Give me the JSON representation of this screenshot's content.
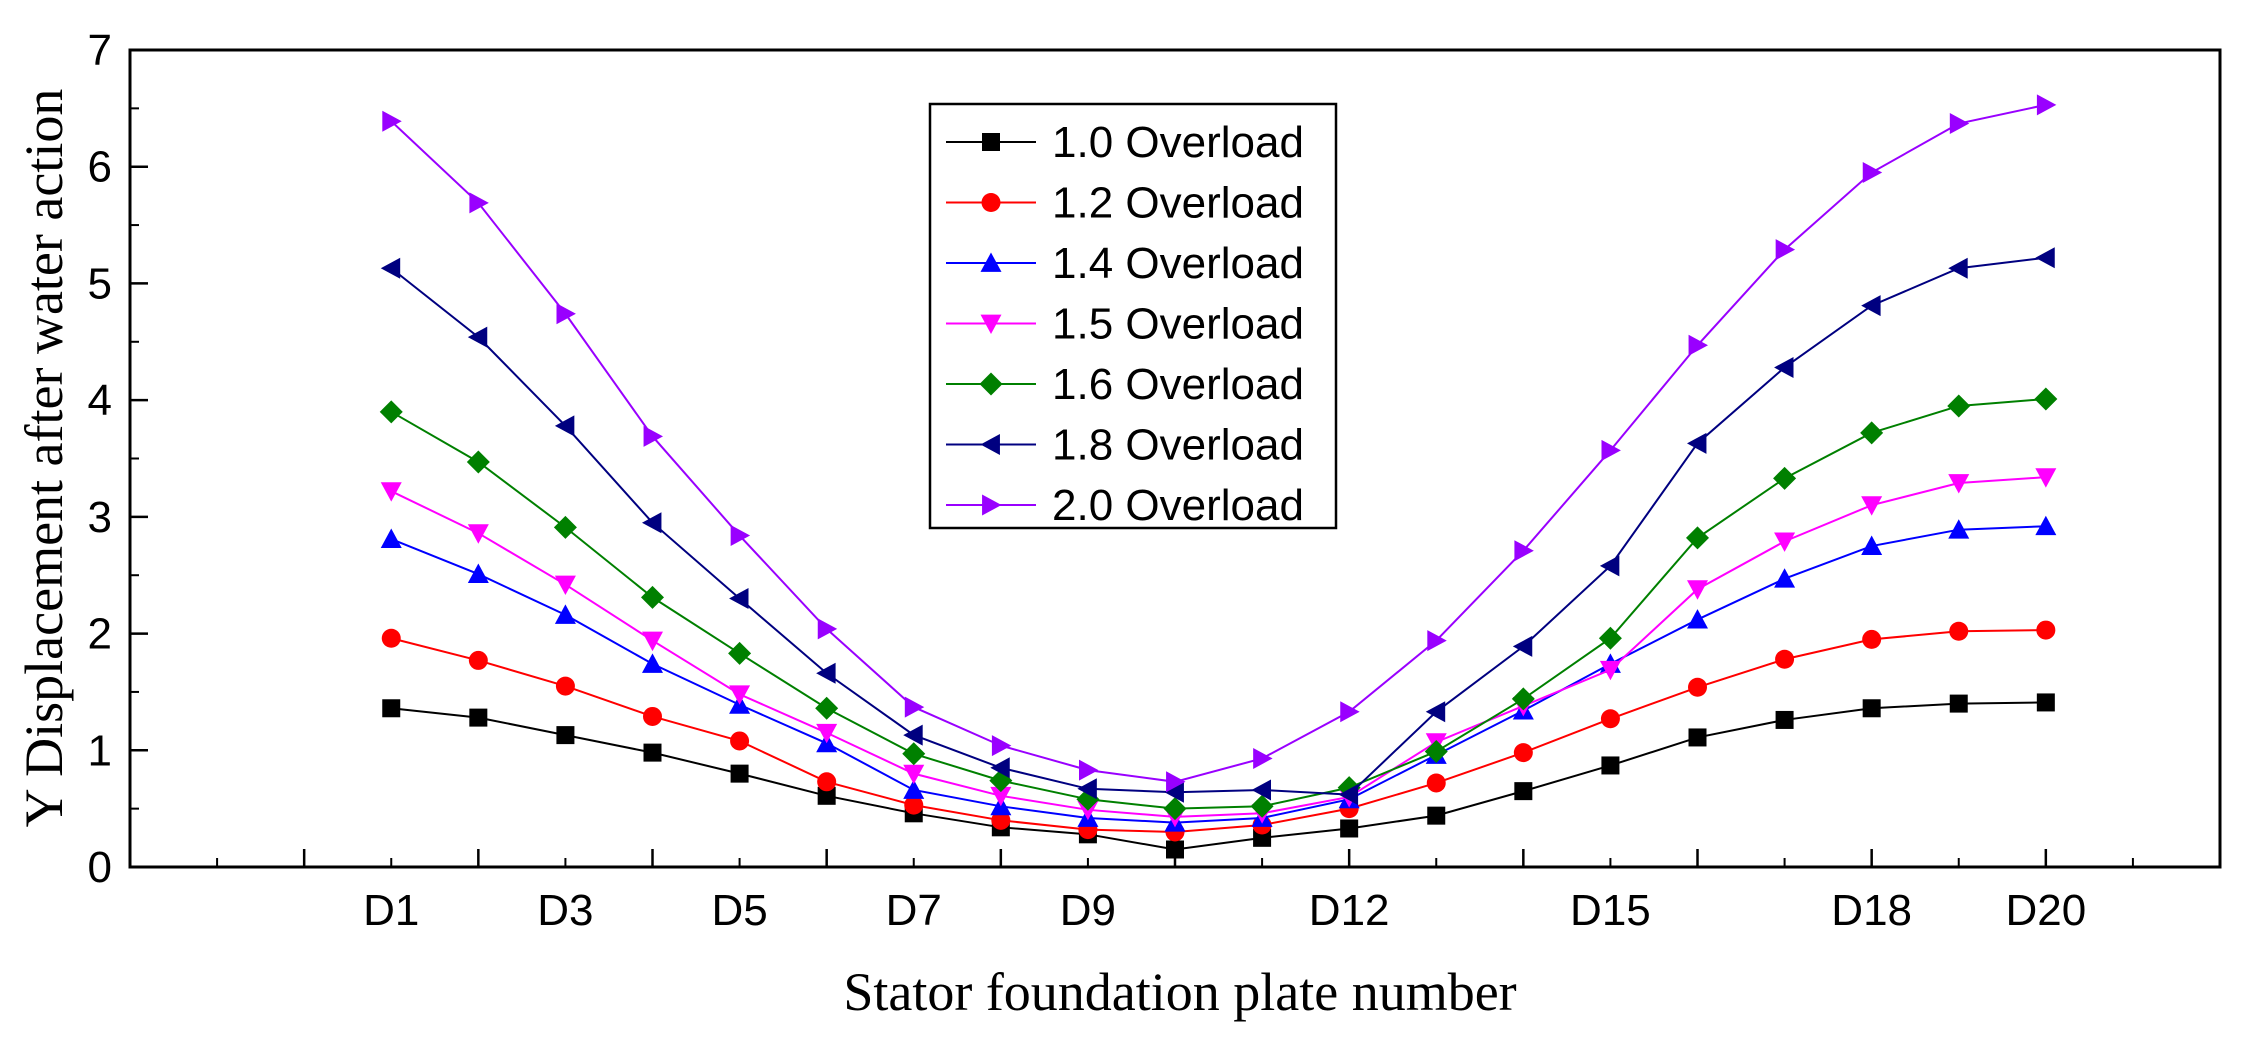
{
  "chart_data": {
    "type": "line",
    "title": "",
    "xlabel": "Stator foundation plate number",
    "ylabel": "Y Displacement after water action",
    "x_positions": [
      1,
      2,
      3,
      4,
      5,
      6,
      7,
      8,
      9,
      10,
      11,
      12,
      13,
      14,
      15,
      16,
      17,
      18,
      19,
      20
    ],
    "xlim": [
      -2,
      22
    ],
    "x_major_ticks": [
      -2,
      0,
      2,
      4,
      6,
      8,
      10,
      12,
      14,
      16,
      18,
      20,
      22
    ],
    "x_tick_labels": [
      {
        "x": 1,
        "label": "D1"
      },
      {
        "x": 3,
        "label": "D3"
      },
      {
        "x": 5,
        "label": "D5"
      },
      {
        "x": 7,
        "label": "D7"
      },
      {
        "x": 9,
        "label": "D9"
      },
      {
        "x": 12,
        "label": "D12"
      },
      {
        "x": 15,
        "label": "D15"
      },
      {
        "x": 18,
        "label": "D18"
      },
      {
        "x": 20,
        "label": "D20"
      }
    ],
    "ylim": [
      0,
      7
    ],
    "y_ticks": [
      0,
      1,
      2,
      3,
      4,
      5,
      6,
      7
    ],
    "y_tick_labels": [
      "0",
      "1",
      "2",
      "3",
      "4",
      "5",
      "6",
      "7"
    ],
    "grid": false,
    "legend_position": "top-center",
    "series": [
      {
        "name": "1.0 Overload",
        "color": "#000000",
        "marker": "square",
        "values": [
          1.36,
          1.28,
          1.13,
          0.98,
          0.8,
          0.61,
          0.46,
          0.34,
          0.28,
          0.15,
          0.25,
          0.33,
          0.44,
          0.65,
          0.87,
          1.11,
          1.26,
          1.36,
          1.4,
          1.41
        ]
      },
      {
        "name": "1.2 Overload",
        "color": "#ff0000",
        "marker": "circle",
        "values": [
          1.96,
          1.77,
          1.55,
          1.29,
          1.08,
          0.73,
          0.53,
          0.4,
          0.32,
          0.3,
          0.36,
          0.5,
          0.72,
          0.98,
          1.27,
          1.54,
          1.78,
          1.95,
          2.02,
          2.03
        ]
      },
      {
        "name": "1.4 Overload",
        "color": "#0000ff",
        "marker": "triangle-up",
        "values": [
          2.81,
          2.51,
          2.16,
          1.74,
          1.39,
          1.06,
          0.66,
          0.52,
          0.42,
          0.38,
          0.42,
          0.58,
          0.96,
          1.34,
          1.74,
          2.12,
          2.47,
          2.75,
          2.89,
          2.92
        ]
      },
      {
        "name": "1.5 Overload",
        "color": "#ff00ff",
        "marker": "triangle-down",
        "values": [
          3.22,
          2.86,
          2.42,
          1.94,
          1.48,
          1.15,
          0.8,
          0.61,
          0.49,
          0.43,
          0.46,
          0.6,
          1.07,
          1.38,
          1.69,
          2.38,
          2.79,
          3.1,
          3.29,
          3.34
        ]
      },
      {
        "name": "1.6 Overload",
        "color": "#008000",
        "marker": "diamond",
        "values": [
          3.9,
          3.47,
          2.91,
          2.31,
          1.83,
          1.36,
          0.97,
          0.74,
          0.58,
          0.5,
          0.52,
          0.68,
          0.99,
          1.44,
          1.96,
          2.82,
          3.33,
          3.72,
          3.95,
          4.01
        ]
      },
      {
        "name": "1.8 Overload",
        "color": "#000080",
        "marker": "triangle-left",
        "values": [
          5.13,
          4.54,
          3.78,
          2.95,
          2.3,
          1.66,
          1.13,
          0.85,
          0.67,
          0.64,
          0.66,
          0.62,
          1.33,
          1.89,
          2.58,
          3.63,
          4.28,
          4.81,
          5.13,
          5.22
        ]
      },
      {
        "name": "2.0 Overload",
        "color": "#9900ff",
        "marker": "triangle-right",
        "values": [
          6.39,
          5.69,
          4.74,
          3.69,
          2.84,
          2.04,
          1.37,
          1.04,
          0.83,
          0.73,
          0.93,
          1.33,
          1.94,
          2.71,
          3.57,
          4.47,
          5.29,
          5.95,
          6.37,
          6.53
        ]
      }
    ]
  }
}
